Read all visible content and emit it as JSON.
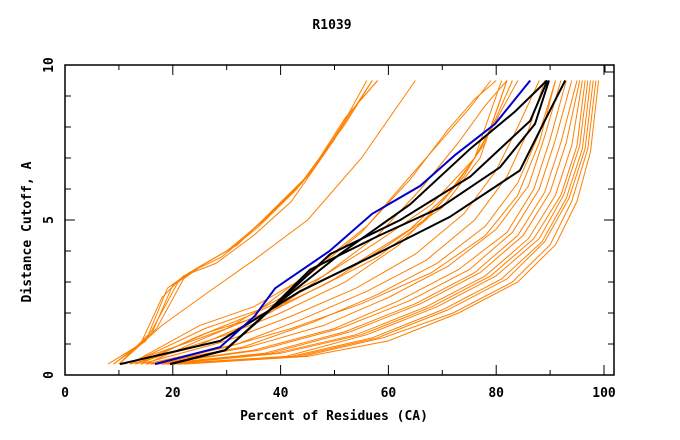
{
  "chart_data": {
    "type": "line",
    "title": "R1039",
    "xlabel": "Percent of Residues (CA)",
    "ylabel": "Distance Cutoff, A",
    "xlim": [
      0,
      100
    ],
    "ylim": [
      0,
      10
    ],
    "xticks": [
      "0",
      "20",
      "40",
      "60",
      "80",
      "100"
    ],
    "yticks": [
      "0",
      "5",
      "10"
    ],
    "grid": false,
    "colors": {
      "other": "#ff8000",
      "highlight": "#0000cc",
      "reference": "#000000",
      "axis": "#000000"
    },
    "series": [
      {
        "name": "blue-model",
        "group": "highlight",
        "x": [
          16.7,
          28.8,
          35.2,
          39,
          49.1,
          57,
          65.9,
          72.4,
          79.8,
          86.3
        ],
        "y": [
          0.35,
          0.9,
          1.9,
          2.8,
          4.0,
          5.2,
          6.1,
          7.1,
          8.1,
          9.5
        ]
      },
      {
        "name": "black-model-1",
        "group": "reference",
        "x": [
          10.2,
          28.8,
          43.6,
          56.6,
          71.4,
          84.4,
          89,
          92.8
        ],
        "y": [
          0.35,
          1.1,
          2.7,
          3.8,
          5.1,
          6.6,
          8.2,
          9.5
        ]
      },
      {
        "name": "black-model-2",
        "group": "reference",
        "x": [
          19.5,
          29.7,
          36.2,
          45.5,
          58.3,
          69.6,
          80.7,
          87.2,
          89.8
        ],
        "y": [
          0.35,
          0.8,
          1.8,
          3.4,
          4.5,
          5.4,
          6.7,
          8.1,
          9.5
        ]
      },
      {
        "name": "black-model-3",
        "group": "reference",
        "x": [
          19.5,
          29.7,
          36.2,
          49.2,
          62.2,
          75.2,
          86.3,
          89.5
        ],
        "y": [
          0.35,
          0.8,
          1.8,
          3.9,
          5.0,
          6.4,
          8.2,
          9.5
        ]
      },
      {
        "name": "black-model-4",
        "group": "reference",
        "x": [
          19.5,
          29.7,
          38,
          51,
          64,
          75.2,
          83.5,
          89.4
        ],
        "y": [
          0.35,
          0.8,
          2.1,
          3.9,
          5.5,
          7.3,
          8.5,
          9.5
        ]
      },
      {
        "name": "orange-1",
        "group": "other",
        "x": [
          8,
          14,
          18,
          22,
          28,
          35,
          42,
          50,
          56
        ],
        "y": [
          0.35,
          1.0,
          2.5,
          3.2,
          3.6,
          4.5,
          5.6,
          7.6,
          9.5
        ]
      },
      {
        "name": "orange-2",
        "group": "other",
        "x": [
          9,
          15,
          19,
          23,
          29,
          36,
          43,
          51,
          57
        ],
        "y": [
          0.35,
          1.1,
          2.8,
          3.3,
          3.8,
          4.8,
          6.0,
          7.9,
          9.5
        ]
      },
      {
        "name": "orange-3",
        "group": "other",
        "x": [
          9,
          16,
          20,
          24,
          30,
          37,
          44,
          52,
          57
        ],
        "y": [
          0.35,
          1.3,
          2.9,
          3.4,
          4.0,
          5.0,
          6.2,
          8.1,
          9.5
        ]
      },
      {
        "name": "orange-4",
        "group": "other",
        "x": [
          10,
          16,
          21,
          25,
          31,
          38,
          45,
          52,
          58
        ],
        "y": [
          0.35,
          1.4,
          3.0,
          3.5,
          4.1,
          5.2,
          6.4,
          8.3,
          9.5
        ]
      },
      {
        "name": "orange-5",
        "group": "other",
        "x": [
          10,
          17,
          22,
          26,
          32,
          39,
          46,
          53,
          58
        ],
        "y": [
          0.35,
          1.5,
          3.1,
          3.6,
          4.2,
          5.4,
          6.6,
          8.5,
          9.5
        ]
      },
      {
        "name": "orange-6",
        "group": "other",
        "x": [
          10,
          18,
          26,
          35,
          45,
          55,
          65
        ],
        "y": [
          0.35,
          1.6,
          2.6,
          3.7,
          5.0,
          7.0,
          9.5
        ]
      },
      {
        "name": "orange-7",
        "group": "other",
        "x": [
          12,
          25,
          35,
          45,
          55,
          62,
          70,
          75,
          79
        ],
        "y": [
          0.35,
          1.6,
          2.2,
          3.2,
          4.6,
          6.0,
          7.6,
          8.6,
          9.5
        ]
      },
      {
        "name": "orange-8",
        "group": "other",
        "x": [
          12,
          26,
          36,
          46,
          56,
          64,
          71,
          76,
          80
        ],
        "y": [
          0.35,
          1.5,
          2.1,
          3.4,
          4.8,
          6.3,
          7.9,
          8.9,
          9.5
        ]
      },
      {
        "name": "orange-9",
        "group": "other",
        "x": [
          13,
          27,
          38,
          48,
          58,
          66,
          73,
          78,
          82
        ],
        "y": [
          0.35,
          1.4,
          2.0,
          3.2,
          4.5,
          6.0,
          7.5,
          8.7,
          9.5
        ]
      },
      {
        "name": "orange-10",
        "group": "other",
        "x": [
          13,
          30,
          40,
          52,
          62,
          70,
          76,
          80,
          83
        ],
        "y": [
          0.35,
          1.3,
          2.0,
          3.0,
          4.2,
          5.6,
          7.0,
          8.3,
          9.5
        ]
      },
      {
        "name": "orange-11",
        "group": "other",
        "x": [
          14,
          30,
          42,
          54,
          65,
          74,
          80,
          84,
          88
        ],
        "y": [
          0.35,
          1.1,
          1.9,
          2.8,
          3.9,
          5.2,
          6.6,
          8.0,
          9.5
        ]
      },
      {
        "name": "orange-12",
        "group": "other",
        "x": [
          15,
          32,
          44,
          56,
          67,
          76,
          82,
          86,
          89
        ],
        "y": [
          0.35,
          1.0,
          1.8,
          2.7,
          3.7,
          5.0,
          6.4,
          7.9,
          9.5
        ]
      },
      {
        "name": "orange-13",
        "group": "other",
        "x": [
          15,
          33,
          46,
          58,
          69,
          78,
          84,
          88,
          91
        ],
        "y": [
          0.35,
          0.9,
          1.7,
          2.6,
          3.6,
          4.8,
          6.2,
          7.8,
          9.5
        ]
      },
      {
        "name": "orange-14",
        "group": "other",
        "x": [
          16,
          34,
          48,
          60,
          71,
          80,
          86,
          89,
          92
        ],
        "y": [
          0.35,
          0.9,
          1.6,
          2.5,
          3.5,
          4.7,
          6.1,
          7.7,
          9.5
        ]
      },
      {
        "name": "orange-15",
        "group": "other",
        "x": [
          16,
          35,
          50,
          62,
          73,
          82,
          87,
          90,
          93
        ],
        "y": [
          0.35,
          0.8,
          1.5,
          2.4,
          3.4,
          4.6,
          6.0,
          7.6,
          9.5
        ]
      },
      {
        "name": "orange-16",
        "group": "other",
        "x": [
          17,
          36,
          51,
          64,
          75,
          83,
          88,
          91,
          94
        ],
        "y": [
          0.35,
          0.8,
          1.5,
          2.4,
          3.4,
          4.6,
          6.0,
          7.6,
          9.5
        ]
      },
      {
        "name": "orange-17",
        "group": "other",
        "x": [
          17,
          37,
          52,
          65,
          76,
          84,
          89,
          92,
          95
        ],
        "y": [
          0.35,
          0.7,
          1.4,
          2.3,
          3.3,
          4.5,
          5.9,
          7.5,
          9.5
        ]
      },
      {
        "name": "orange-18",
        "group": "other",
        "x": [
          18,
          38,
          53,
          66,
          77,
          85,
          90,
          93,
          95.5
        ],
        "y": [
          0.35,
          0.7,
          1.4,
          2.3,
          3.3,
          4.5,
          5.9,
          7.5,
          9.5
        ]
      },
      {
        "name": "orange-19",
        "group": "other",
        "x": [
          18,
          39,
          54,
          67,
          78,
          86,
          91,
          94,
          96
        ],
        "y": [
          0.35,
          0.7,
          1.3,
          2.2,
          3.2,
          4.4,
          5.8,
          7.4,
          9.5
        ]
      },
      {
        "name": "orange-20",
        "group": "other",
        "x": [
          19,
          40,
          55,
          68,
          79,
          87,
          92,
          95,
          96.5
        ],
        "y": [
          0.35,
          0.7,
          1.3,
          2.2,
          3.2,
          4.4,
          5.8,
          7.4,
          9.5
        ]
      },
      {
        "name": "orange-21",
        "group": "other",
        "x": [
          19,
          41,
          56,
          69,
          80,
          88,
          92.5,
          95.5,
          97
        ],
        "y": [
          0.35,
          0.6,
          1.3,
          2.2,
          3.2,
          4.4,
          5.8,
          7.4,
          9.5
        ]
      },
      {
        "name": "orange-22",
        "group": "other",
        "x": [
          20,
          42,
          57,
          70,
          81,
          88.5,
          93,
          96,
          97.5
        ],
        "y": [
          0.35,
          0.6,
          1.2,
          2.1,
          3.1,
          4.3,
          5.7,
          7.3,
          9.5
        ]
      },
      {
        "name": "orange-23",
        "group": "other",
        "x": [
          20,
          43,
          58,
          71,
          82,
          89,
          93.5,
          96.5,
          98
        ],
        "y": [
          0.35,
          0.6,
          1.2,
          2.1,
          3.1,
          4.3,
          5.7,
          7.3,
          9.5
        ]
      },
      {
        "name": "orange-24",
        "group": "other",
        "x": [
          21,
          44,
          59,
          72,
          83,
          90,
          94,
          97,
          98.5
        ],
        "y": [
          0.35,
          0.6,
          1.2,
          2.0,
          3.0,
          4.2,
          5.6,
          7.3,
          9.5
        ]
      },
      {
        "name": "orange-25",
        "group": "other",
        "x": [
          22,
          45,
          60,
          73,
          84,
          91,
          95,
          97.5,
          99
        ],
        "y": [
          0.35,
          0.6,
          1.1,
          2.0,
          3.0,
          4.2,
          5.6,
          7.2,
          9.5
        ]
      },
      {
        "name": "orange-26",
        "group": "other",
        "x": [
          14,
          24,
          34,
          44,
          54,
          64,
          72,
          78,
          82
        ],
        "y": [
          0.35,
          1.2,
          1.9,
          2.7,
          3.6,
          4.7,
          6.0,
          7.5,
          9.5
        ]
      },
      {
        "name": "orange-27",
        "group": "other",
        "x": [
          15,
          26,
          37,
          48,
          58,
          67,
          74,
          79,
          84
        ],
        "y": [
          0.35,
          1.2,
          2.0,
          2.9,
          3.8,
          5.0,
          6.4,
          7.9,
          9.5
        ]
      },
      {
        "name": "orange-28",
        "group": "other",
        "x": [
          11,
          22,
          30,
          38,
          48,
          58,
          68,
          76,
          81
        ],
        "y": [
          0.35,
          1.0,
          1.5,
          2.3,
          3.2,
          4.3,
          5.5,
          7.0,
          9.5
        ]
      },
      {
        "name": "orange-29",
        "group": "other",
        "x": [
          12,
          24,
          32,
          40,
          50,
          60,
          70,
          77,
          82
        ],
        "y": [
          0.35,
          0.9,
          1.5,
          2.2,
          3.1,
          4.2,
          5.4,
          7.0,
          9.5
        ]
      },
      {
        "name": "orange-30",
        "group": "other",
        "x": [
          16,
          30,
          42,
          55,
          68,
          78,
          84,
          88,
          91
        ],
        "y": [
          0.35,
          0.9,
          1.5,
          2.3,
          3.3,
          4.5,
          5.8,
          7.5,
          9.5
        ]
      }
    ]
  }
}
